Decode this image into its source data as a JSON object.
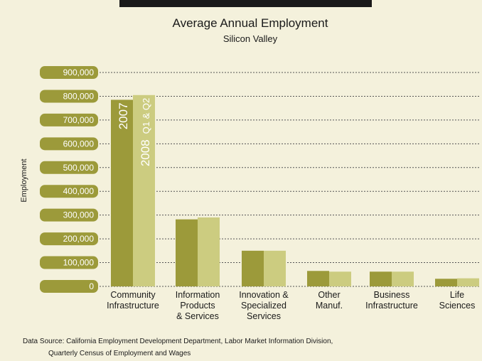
{
  "chart_data": {
    "type": "bar",
    "title": "Average Annual Employment",
    "subtitle": "Silicon Valley",
    "ylabel": "Employment",
    "ylim": [
      0,
      900000
    ],
    "yticks": [
      "900,000",
      "800,000",
      "700,000",
      "600,000",
      "500,000",
      "400,000",
      "300,000",
      "200,000",
      "100,000",
      "0"
    ],
    "ytick_values": [
      900000,
      800000,
      700000,
      600000,
      500000,
      400000,
      300000,
      200000,
      100000,
      0
    ],
    "grid": true,
    "categories": [
      [
        "Community",
        "Infrastructure"
      ],
      [
        "Information",
        "Products",
        "& Services"
      ],
      [
        "Innovation &",
        "Specialized",
        "Services"
      ],
      [
        "Other",
        "Manuf."
      ],
      [
        "Business",
        "Infrastructure"
      ],
      [
        "Life",
        "Sciences"
      ]
    ],
    "series": [
      {
        "name": "2007",
        "color": "#9c9a3a",
        "values": [
          785000,
          282000,
          150000,
          65000,
          62000,
          32000
        ]
      },
      {
        "name": "Q1 & Q2 2008",
        "color": "#cccc80",
        "values": [
          805000,
          290000,
          150000,
          62000,
          62000,
          34000
        ]
      }
    ],
    "bar_labels": {
      "s1": "2007",
      "s2_prefix": "Q1 & Q2",
      "s2_year": "2008"
    }
  },
  "source": {
    "line1": "Data Source: California Employment Development Department, Labor Market Information Division,",
    "line2": "Quarterly Census of Employment and Wages"
  },
  "colors": {
    "background": "#f4f1dc",
    "header_bar": "#1a1a1a",
    "tick_badge": "#9c9a3a",
    "grid": "#555555"
  }
}
